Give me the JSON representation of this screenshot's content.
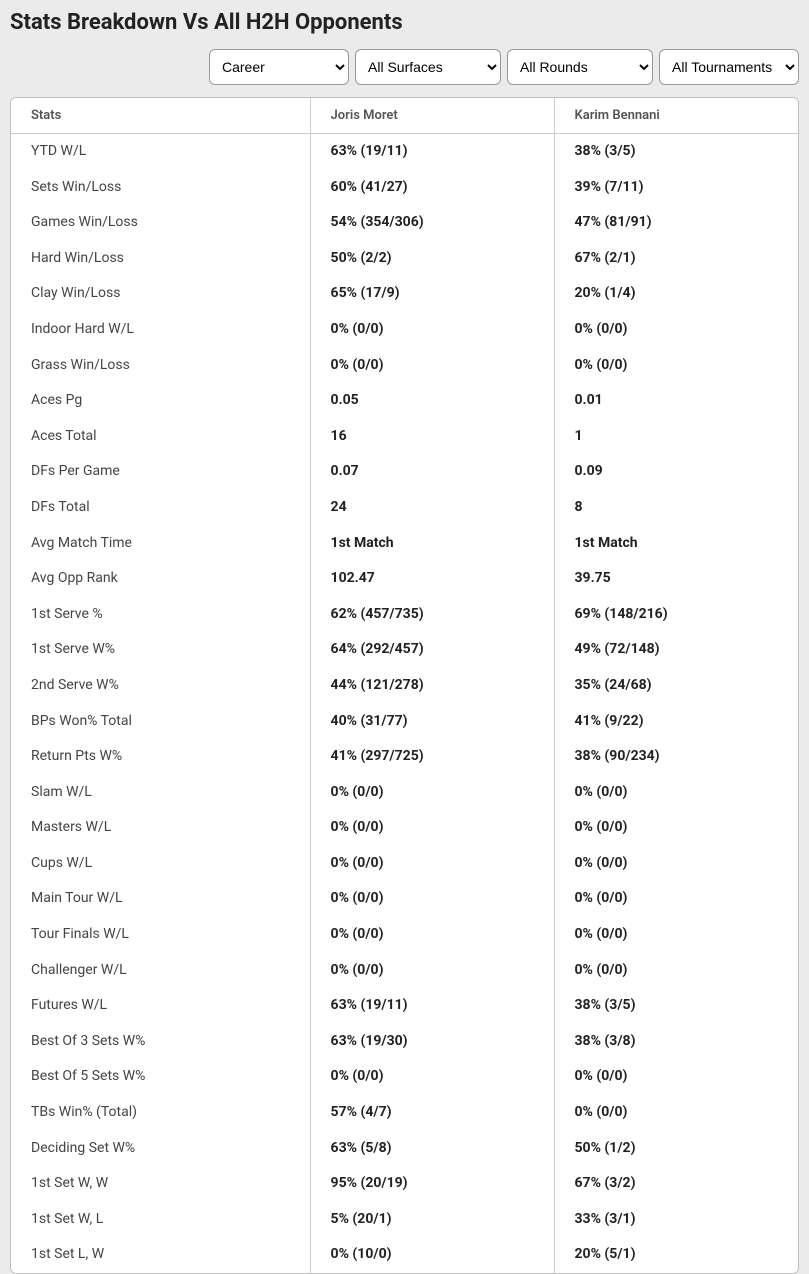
{
  "title": "Stats Breakdown Vs All H2H Opponents",
  "filters": {
    "period": "Career",
    "surface": "All Surfaces",
    "round": "All Rounds",
    "tournament": "All Tournaments"
  },
  "columns": [
    "Stats",
    "Joris Moret",
    "Karim Bennani"
  ],
  "rows": [
    {
      "stat": "YTD W/L",
      "p1": "63% (19/11)",
      "p2": "38% (3/5)"
    },
    {
      "stat": "Sets Win/Loss",
      "p1": "60% (41/27)",
      "p2": "39% (7/11)"
    },
    {
      "stat": "Games Win/Loss",
      "p1": "54% (354/306)",
      "p2": "47% (81/91)"
    },
    {
      "stat": "Hard Win/Loss",
      "p1": "50% (2/2)",
      "p2": "67% (2/1)"
    },
    {
      "stat": "Clay Win/Loss",
      "p1": "65% (17/9)",
      "p2": "20% (1/4)"
    },
    {
      "stat": "Indoor Hard W/L",
      "p1": "0% (0/0)",
      "p2": "0% (0/0)"
    },
    {
      "stat": "Grass Win/Loss",
      "p1": "0% (0/0)",
      "p2": "0% (0/0)"
    },
    {
      "stat": "Aces Pg",
      "p1": "0.05",
      "p2": "0.01"
    },
    {
      "stat": "Aces Total",
      "p1": "16",
      "p2": "1"
    },
    {
      "stat": "DFs Per Game",
      "p1": "0.07",
      "p2": "0.09"
    },
    {
      "stat": "DFs Total",
      "p1": "24",
      "p2": "8"
    },
    {
      "stat": "Avg Match Time",
      "p1": "1st Match",
      "p2": "1st Match"
    },
    {
      "stat": "Avg Opp Rank",
      "p1": "102.47",
      "p2": "39.75"
    },
    {
      "stat": "1st Serve %",
      "p1": "62% (457/735)",
      "p2": "69% (148/216)"
    },
    {
      "stat": "1st Serve W%",
      "p1": "64% (292/457)",
      "p2": "49% (72/148)"
    },
    {
      "stat": "2nd Serve W%",
      "p1": "44% (121/278)",
      "p2": "35% (24/68)"
    },
    {
      "stat": "BPs Won% Total",
      "p1": "40% (31/77)",
      "p2": "41% (9/22)"
    },
    {
      "stat": "Return Pts W%",
      "p1": "41% (297/725)",
      "p2": "38% (90/234)"
    },
    {
      "stat": "Slam W/L",
      "p1": "0% (0/0)",
      "p2": "0% (0/0)"
    },
    {
      "stat": "Masters W/L",
      "p1": "0% (0/0)",
      "p2": "0% (0/0)"
    },
    {
      "stat": "Cups W/L",
      "p1": "0% (0/0)",
      "p2": "0% (0/0)"
    },
    {
      "stat": "Main Tour W/L",
      "p1": "0% (0/0)",
      "p2": "0% (0/0)"
    },
    {
      "stat": "Tour Finals W/L",
      "p1": "0% (0/0)",
      "p2": "0% (0/0)"
    },
    {
      "stat": "Challenger W/L",
      "p1": "0% (0/0)",
      "p2": "0% (0/0)"
    },
    {
      "stat": "Futures W/L",
      "p1": "63% (19/11)",
      "p2": "38% (3/5)"
    },
    {
      "stat": "Best Of 3 Sets W%",
      "p1": "63% (19/30)",
      "p2": "38% (3/8)"
    },
    {
      "stat": "Best Of 5 Sets W%",
      "p1": "0% (0/0)",
      "p2": "0% (0/0)"
    },
    {
      "stat": "TBs Win% (Total)",
      "p1": "57% (4/7)",
      "p2": "0% (0/0)"
    },
    {
      "stat": "Deciding Set W%",
      "p1": "63% (5/8)",
      "p2": "50% (1/2)"
    },
    {
      "stat": "1st Set W, W",
      "p1": "95% (20/19)",
      "p2": "67% (3/2)"
    },
    {
      "stat": "1st Set W, L",
      "p1": "5% (20/1)",
      "p2": "33% (3/1)"
    },
    {
      "stat": "1st Set L, W",
      "p1": "0% (10/0)",
      "p2": "20% (5/1)"
    }
  ]
}
